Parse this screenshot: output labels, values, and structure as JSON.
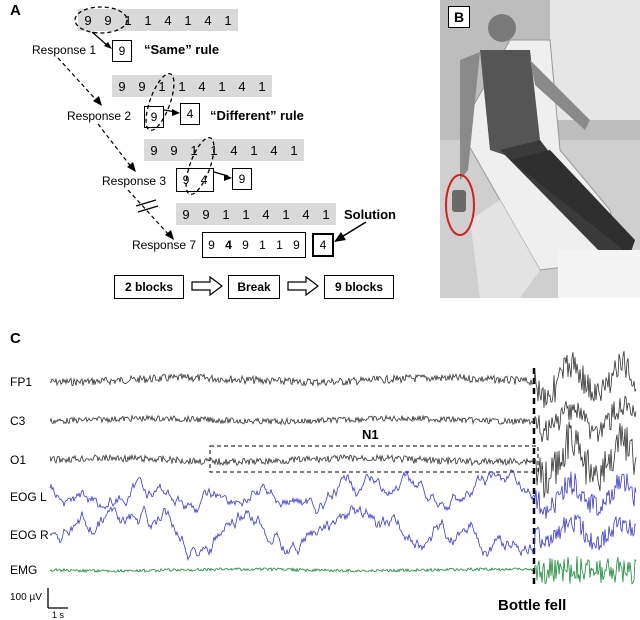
{
  "panels": {
    "a": "A",
    "b": "B",
    "c": "C"
  },
  "task": {
    "sequence_rows": [
      [
        "9",
        "9",
        "1",
        "1",
        "4",
        "1",
        "4",
        "1"
      ],
      [
        "9",
        "9",
        "1",
        "1",
        "4",
        "1",
        "4",
        "1"
      ],
      [
        "9",
        "9",
        "1",
        "1",
        "4",
        "1",
        "4",
        "1"
      ],
      [
        "9",
        "9",
        "1",
        "1",
        "4",
        "1",
        "4",
        "1"
      ]
    ],
    "responses": [
      "Response 1",
      "Response 2",
      "Response 3",
      "Response 7"
    ],
    "response_values": {
      "r1": "9",
      "r2_in": "9",
      "r2_out": "4",
      "r3_in_a": "9",
      "r3_in_b": "4",
      "r3_out": "9",
      "r7_seq": [
        "9",
        "4",
        "9",
        "1",
        "1",
        "9"
      ],
      "r7_out": "4"
    },
    "same_rule": "“Same” rule",
    "different_rule": "“Different” rule",
    "solution": "Solution",
    "flow": {
      "b1": "2 blocks",
      "b2": "Break",
      "b3": "9 blocks"
    }
  },
  "eeg": {
    "channels": [
      "FP1",
      "C3",
      "O1",
      "EOG L",
      "EOG R",
      "EMG"
    ],
    "n1_label": "N1",
    "scale_v": "100 µV",
    "scale_t": "1 s",
    "event": "Bottle fell",
    "colors": {
      "eeg": "#333333",
      "eog": "#3a3ad0",
      "emg": "#1a8a3a"
    }
  }
}
